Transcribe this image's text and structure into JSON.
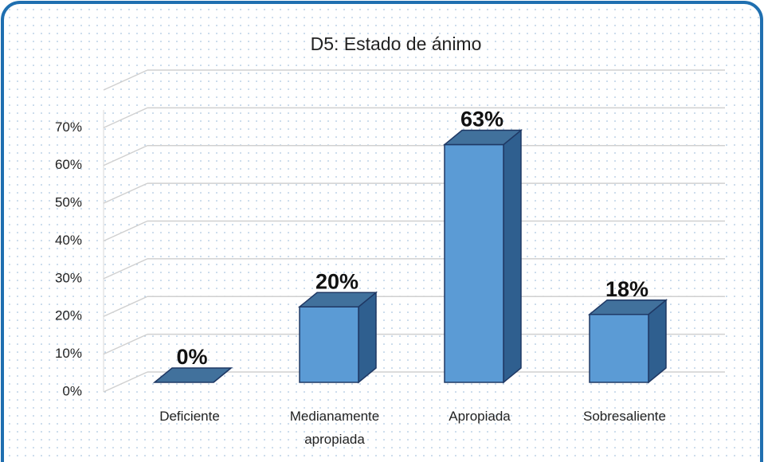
{
  "chart_data": {
    "type": "bar3d",
    "title": "D5: Estado de ánimo",
    "categories": [
      "Deficiente",
      "Medianamente apropiada",
      "Apropiada",
      "Sobresaliente"
    ],
    "values": [
      0,
      20,
      63,
      18
    ],
    "value_labels": [
      "0%",
      "20%",
      "63%",
      "18%"
    ],
    "color": "#5b9bd5",
    "ylim": [
      0,
      80
    ],
    "yticks": [
      {
        "value": 0,
        "label": "0%"
      },
      {
        "value": 10,
        "label": "10%"
      },
      {
        "value": 20,
        "label": "20%"
      },
      {
        "value": 30,
        "label": "30%"
      },
      {
        "value": 40,
        "label": "40%"
      },
      {
        "value": 50,
        "label": "50%"
      },
      {
        "value": 60,
        "label": "60%"
      },
      {
        "value": 70,
        "label": "70%"
      }
    ],
    "grid": true
  }
}
